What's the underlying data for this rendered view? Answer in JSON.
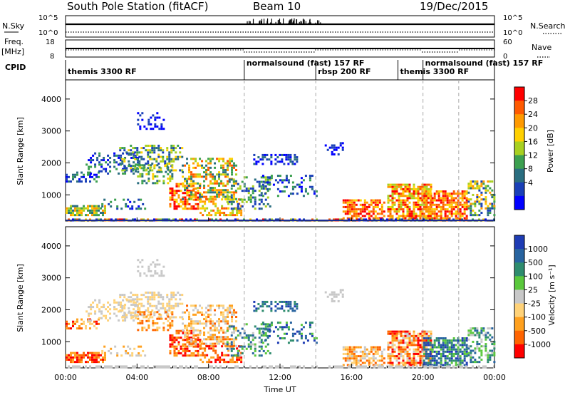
{
  "header": {
    "station": "South Pole Station (fitACF)",
    "beam": "Beam 10",
    "date": "19/Dec/2015"
  },
  "panels": {
    "nsky": {
      "left_label": "N.Sky",
      "right_label": "N.Search",
      "left_ticks": [
        "10^5",
        "10^0"
      ],
      "right_ticks": [
        "10^5",
        "10^0"
      ]
    },
    "freq": {
      "left_label": "Freq.",
      "left_unit": "[MHz]",
      "right_label": "Nave",
      "left_ticks": [
        "18",
        "8"
      ],
      "right_ticks": [
        "60",
        "0"
      ]
    },
    "cpid": {
      "label": "CPID",
      "segments": [
        {
          "name": "themis 3300 RF",
          "start_h": 0,
          "end_h": 10
        },
        {
          "name": "normalsound (fast) 157 RF",
          "start_h": 10,
          "end_h": 14
        },
        {
          "name": "rbsp 200 RF",
          "start_h": 14,
          "end_h": 18.6
        },
        {
          "name": "themis 3300 RF",
          "start_h": 18.6,
          "end_h": 20
        },
        {
          "name": "normalsound (fast) 157 RF",
          "start_h": 20,
          "end_h": 24
        }
      ]
    }
  },
  "chart_data": [
    {
      "type": "heatmap",
      "name": "power",
      "ylabel": "Slant Range [km]",
      "y_ticks": [
        1000,
        2000,
        3000,
        4000
      ],
      "ylim": [
        180,
        4600
      ],
      "x_range_h": [
        0,
        24
      ],
      "colorbar": {
        "label": "Power [dB]",
        "ticks": [
          "28",
          "24",
          "20",
          "16",
          "12",
          "8",
          "4"
        ],
        "colors": [
          "#ff0000",
          "#ff5a00",
          "#ff9a00",
          "#ffd000",
          "#a8d020",
          "#3ca050",
          "#2a6e80",
          "#1a40b8",
          "#0000ff"
        ]
      }
    },
    {
      "type": "heatmap",
      "name": "velocity",
      "ylabel": "Slant Range [km]",
      "y_ticks": [
        1000,
        2000,
        3000,
        4000
      ],
      "ylim": [
        180,
        4600
      ],
      "x_range_h": [
        0,
        24
      ],
      "xlabel": "Time UT",
      "x_ticks": [
        "00:00",
        "04:00",
        "08:00",
        "12:00",
        "16:00",
        "20:00",
        "00:00"
      ],
      "colorbar": {
        "label": "Velocity [m s⁻¹]",
        "ticks": [
          "1000",
          "500",
          "100",
          "25",
          "-25",
          "-100",
          "-500",
          "-1000"
        ],
        "colors": [
          "#1e3cb4",
          "#2864a0",
          "#2e8c6e",
          "#5ac83c",
          "#c8c8c8",
          "#ffd278",
          "#ffa01e",
          "#ff6400",
          "#ff0000"
        ]
      }
    }
  ]
}
